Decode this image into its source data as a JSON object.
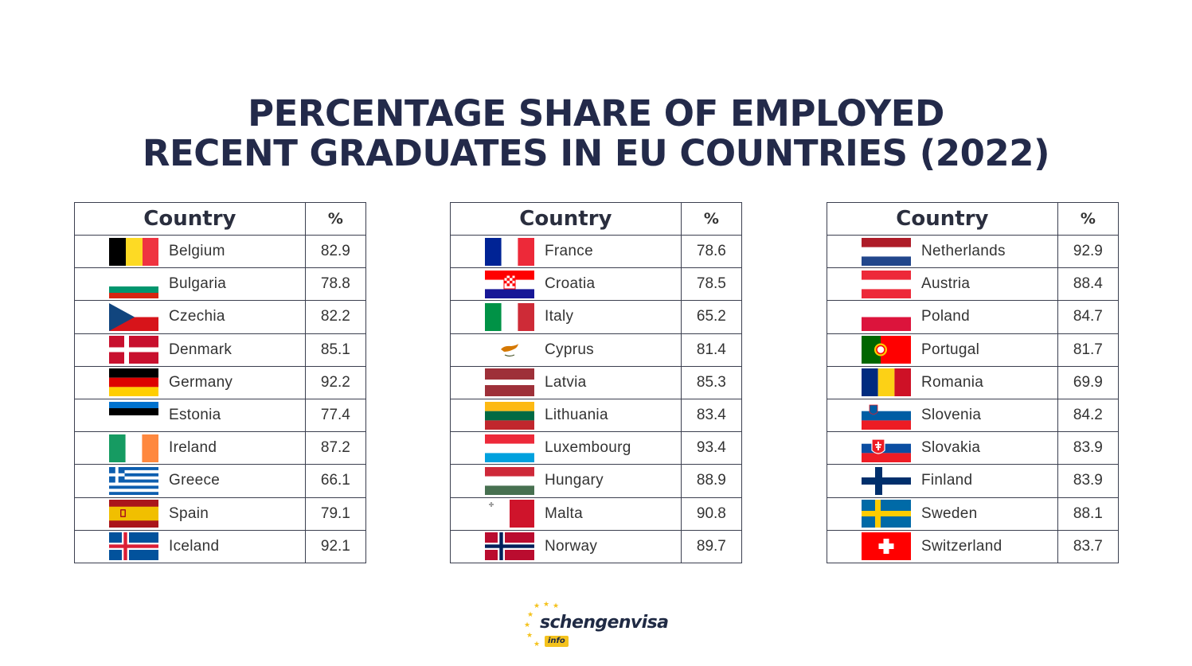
{
  "title": {
    "line1": "PERCENTAGE SHARE OF EMPLOYED",
    "line2": "RECENT GRADUATES IN EU COUNTRIES (2022)"
  },
  "headers": {
    "country": "Country",
    "percent": "%"
  },
  "tables": [
    {
      "rows": [
        {
          "country": "Belgium",
          "value": "82.9",
          "flag_icon": "belgium-flag-icon"
        },
        {
          "country": "Bulgaria",
          "value": "78.8",
          "flag_icon": "bulgaria-flag-icon"
        },
        {
          "country": "Czechia",
          "value": "82.2",
          "flag_icon": "czechia-flag-icon"
        },
        {
          "country": "Denmark",
          "value": "85.1",
          "flag_icon": "denmark-flag-icon"
        },
        {
          "country": "Germany",
          "value": "92.2",
          "flag_icon": "germany-flag-icon"
        },
        {
          "country": "Estonia",
          "value": "77.4",
          "flag_icon": "estonia-flag-icon"
        },
        {
          "country": "Ireland",
          "value": "87.2",
          "flag_icon": "ireland-flag-icon"
        },
        {
          "country": "Greece",
          "value": "66.1",
          "flag_icon": "greece-flag-icon"
        },
        {
          "country": "Spain",
          "value": "79.1",
          "flag_icon": "spain-flag-icon"
        },
        {
          "country": "Iceland",
          "value": "92.1",
          "flag_icon": "iceland-flag-icon"
        }
      ]
    },
    {
      "rows": [
        {
          "country": "France",
          "value": "78.6",
          "flag_icon": "france-flag-icon"
        },
        {
          "country": "Croatia",
          "value": "78.5",
          "flag_icon": "croatia-flag-icon"
        },
        {
          "country": "Italy",
          "value": "65.2",
          "flag_icon": "italy-flag-icon"
        },
        {
          "country": "Cyprus",
          "value": "81.4",
          "flag_icon": "cyprus-flag-icon"
        },
        {
          "country": "Latvia",
          "value": "85.3",
          "flag_icon": "latvia-flag-icon"
        },
        {
          "country": "Lithuania",
          "value": "83.4",
          "flag_icon": "lithuania-flag-icon"
        },
        {
          "country": "Luxembourg",
          "value": "93.4",
          "flag_icon": "luxembourg-flag-icon"
        },
        {
          "country": "Hungary",
          "value": "88.9",
          "flag_icon": "hungary-flag-icon"
        },
        {
          "country": "Malta",
          "value": "90.8",
          "flag_icon": "malta-flag-icon"
        },
        {
          "country": "Norway",
          "value": "89.7",
          "flag_icon": "norway-flag-icon"
        }
      ]
    },
    {
      "rows": [
        {
          "country": "Netherlands",
          "value": "92.9",
          "flag_icon": "netherlands-flag-icon"
        },
        {
          "country": "Austria",
          "value": "88.4",
          "flag_icon": "austria-flag-icon"
        },
        {
          "country": "Poland",
          "value": "84.7",
          "flag_icon": "poland-flag-icon"
        },
        {
          "country": "Portugal",
          "value": "81.7",
          "flag_icon": "portugal-flag-icon"
        },
        {
          "country": "Romania",
          "value": "69.9",
          "flag_icon": "romania-flag-icon"
        },
        {
          "country": "Slovenia",
          "value": "84.2",
          "flag_icon": "slovenia-flag-icon"
        },
        {
          "country": "Slovakia",
          "value": "83.9",
          "flag_icon": "slovakia-flag-icon"
        },
        {
          "country": "Finland",
          "value": "83.9",
          "flag_icon": "finland-flag-icon"
        },
        {
          "country": "Sweden",
          "value": "88.1",
          "flag_icon": "sweden-flag-icon"
        },
        {
          "country": "Switzerland",
          "value": "83.7",
          "flag_icon": "switzerland-flag-icon"
        }
      ]
    }
  ],
  "logo": {
    "name": "schengenvisa",
    "badge": "info"
  },
  "colors": {
    "title": "#232a4a",
    "logo_star": "#f4c21d"
  }
}
